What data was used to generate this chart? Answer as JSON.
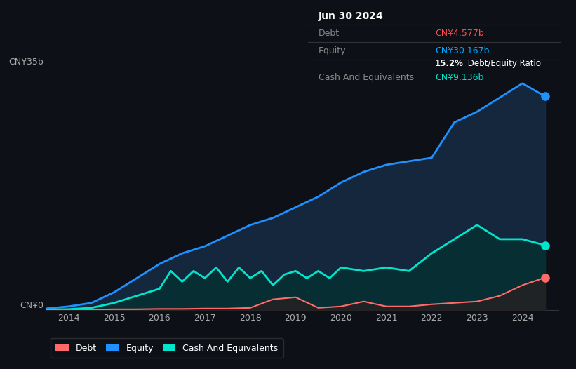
{
  "background_color": "#0d1117",
  "plot_bg_color": "#0d1117",
  "grid_color": "#1e2a3a",
  "title_box": {
    "date": "Jun 30 2024",
    "debt_label": "Debt",
    "debt_value": "CN¥4.577b",
    "equity_label": "Equity",
    "equity_value": "CN¥30.167b",
    "ratio_bold": "15.2%",
    "ratio_text": " Debt/Equity Ratio",
    "cash_label": "Cash And Equivalents",
    "cash_value": "CN¥9.136b",
    "debt_color": "#ff4d4d",
    "equity_color": "#00aaff",
    "cash_color": "#00e5cc",
    "label_color": "#888888",
    "ratio_color": "#ffffff",
    "box_bg": "#000000"
  },
  "y_label_35b": "CN¥35b",
  "y_label_0": "CN¥0",
  "x_ticks": [
    2014,
    2015,
    2016,
    2017,
    2018,
    2019,
    2020,
    2021,
    2022,
    2023,
    2024
  ],
  "equity_color": "#1e90ff",
  "equity_fill_color": "#1a3a5c",
  "debt_color": "#ff6b6b",
  "debt_fill_color": "#3a1a1a",
  "cash_color": "#00e5cc",
  "cash_fill_color": "#00332e",
  "equity_data": {
    "years": [
      2013.5,
      2014.0,
      2014.5,
      2015.0,
      2015.5,
      2016.0,
      2016.5,
      2017.0,
      2017.5,
      2018.0,
      2018.5,
      2019.0,
      2019.5,
      2020.0,
      2020.5,
      2021.0,
      2021.5,
      2022.0,
      2022.5,
      2023.0,
      2023.5,
      2024.0,
      2024.5
    ],
    "values": [
      0.2,
      0.5,
      1.0,
      2.5,
      4.5,
      6.5,
      8.0,
      9.0,
      10.5,
      12.0,
      13.0,
      14.5,
      16.0,
      18.0,
      19.5,
      20.5,
      21.0,
      21.5,
      26.5,
      28.0,
      30.0,
      32.0,
      30.167
    ]
  },
  "debt_data": {
    "years": [
      2013.5,
      2014.0,
      2014.5,
      2015.0,
      2015.5,
      2016.0,
      2016.5,
      2017.0,
      2017.5,
      2018.0,
      2018.5,
      2019.0,
      2019.5,
      2020.0,
      2020.5,
      2021.0,
      2021.5,
      2022.0,
      2022.5,
      2023.0,
      2023.5,
      2024.0,
      2024.5
    ],
    "values": [
      0.05,
      0.05,
      0.05,
      0.1,
      0.1,
      0.15,
      0.15,
      0.2,
      0.2,
      0.3,
      1.5,
      1.8,
      0.3,
      0.5,
      1.2,
      0.5,
      0.5,
      0.8,
      1.0,
      1.2,
      2.0,
      3.5,
      4.577
    ]
  },
  "cash_data": {
    "years": [
      2013.5,
      2014.0,
      2014.5,
      2015.0,
      2015.5,
      2016.0,
      2016.25,
      2016.5,
      2016.75,
      2017.0,
      2017.25,
      2017.5,
      2017.75,
      2018.0,
      2018.25,
      2018.5,
      2018.75,
      2019.0,
      2019.25,
      2019.5,
      2019.75,
      2020.0,
      2020.5,
      2021.0,
      2021.5,
      2022.0,
      2022.5,
      2023.0,
      2023.5,
      2024.0,
      2024.5
    ],
    "values": [
      0.05,
      0.1,
      0.3,
      1.0,
      2.0,
      3.0,
      5.5,
      4.0,
      5.5,
      4.5,
      6.0,
      4.0,
      6.0,
      4.5,
      5.5,
      3.5,
      5.0,
      5.5,
      4.5,
      5.5,
      4.5,
      6.0,
      5.5,
      6.0,
      5.5,
      8.0,
      10.0,
      12.0,
      10.0,
      10.0,
      9.136
    ]
  },
  "ylim": [
    0,
    37
  ],
  "xlim": [
    2013.5,
    2024.8
  ],
  "legend_items": [
    {
      "label": "Debt",
      "color": "#ff6b6b"
    },
    {
      "label": "Equity",
      "color": "#1e90ff"
    },
    {
      "label": "Cash And Equivalents",
      "color": "#00e5cc"
    }
  ],
  "marker_size": 8
}
